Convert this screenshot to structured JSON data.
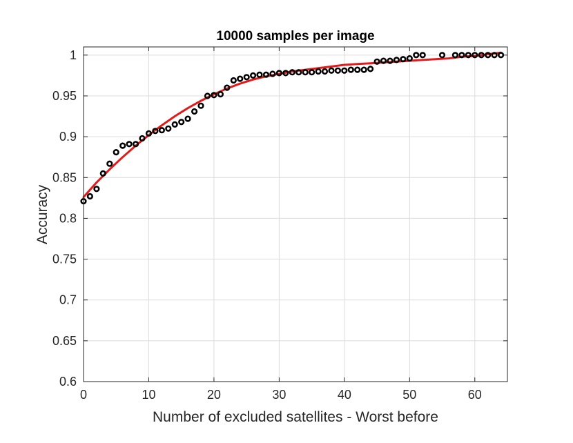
{
  "chart_data": {
    "type": "scatter",
    "title": "10000 samples per image",
    "xlabel": "Number of excluded satellites - Worst before",
    "ylabel": "Accuracy",
    "xlim": [
      0,
      65
    ],
    "ylim": [
      0.6,
      1.01
    ],
    "grid": true,
    "legend": "none",
    "x_ticks": [
      0,
      10,
      20,
      30,
      40,
      50,
      60
    ],
    "y_ticks": [
      0.6,
      0.65,
      0.7,
      0.75,
      0.8,
      0.85,
      0.9,
      0.95,
      1
    ],
    "x_tick_labels": [
      "0",
      "10",
      "20",
      "30",
      "40",
      "50",
      "60"
    ],
    "y_tick_labels": [
      "0.6",
      "0.65",
      "0.7",
      "0.75",
      "0.8",
      "0.85",
      "0.9",
      "0.95",
      "1"
    ],
    "series": [
      {
        "kind": "markers",
        "marker": "circle",
        "color": "#000000",
        "x": [
          0,
          1,
          2,
          3,
          4,
          5,
          6,
          7,
          8,
          9,
          10,
          11,
          12,
          13,
          14,
          15,
          16,
          17,
          18,
          19,
          20,
          21,
          22,
          23,
          24,
          25,
          26,
          27,
          28,
          29,
          30,
          31,
          32,
          33,
          34,
          35,
          36,
          37,
          38,
          39,
          40,
          41,
          42,
          43,
          44,
          45,
          46,
          47,
          48,
          49,
          50,
          51,
          52,
          55,
          57,
          58,
          59,
          60,
          61,
          62,
          63,
          64
        ],
        "y": [
          0.821,
          0.827,
          0.836,
          0.855,
          0.867,
          0.881,
          0.889,
          0.891,
          0.891,
          0.898,
          0.904,
          0.907,
          0.908,
          0.91,
          0.915,
          0.918,
          0.922,
          0.931,
          0.938,
          0.95,
          0.951,
          0.952,
          0.96,
          0.969,
          0.971,
          0.973,
          0.975,
          0.976,
          0.976,
          0.977,
          0.978,
          0.978,
          0.979,
          0.979,
          0.979,
          0.979,
          0.98,
          0.98,
          0.981,
          0.981,
          0.981,
          0.982,
          0.982,
          0.982,
          0.983,
          0.992,
          0.993,
          0.993,
          0.994,
          0.995,
          0.996,
          1.0,
          1.0,
          1.0,
          1.0,
          1.0,
          1.0,
          1.0,
          1.0,
          1.0,
          1.0,
          1.0
        ]
      },
      {
        "kind": "line",
        "color": "#e41a1a",
        "x": [
          0,
          2,
          4,
          6,
          8,
          10,
          12,
          14,
          16,
          18,
          20,
          22,
          24,
          26,
          28,
          30,
          32,
          34,
          36,
          38,
          40,
          42,
          44,
          46,
          48,
          50,
          52,
          54,
          56,
          58,
          60,
          62,
          64
        ],
        "y": [
          0.826,
          0.844,
          0.86,
          0.875,
          0.889,
          0.902,
          0.914,
          0.925,
          0.935,
          0.944,
          0.952,
          0.959,
          0.965,
          0.97,
          0.974,
          0.977,
          0.98,
          0.982,
          0.984,
          0.986,
          0.988,
          0.989,
          0.99,
          0.991,
          0.992,
          0.993,
          0.994,
          0.995,
          0.996,
          0.998,
          0.999,
          1.001,
          1.003
        ]
      }
    ]
  }
}
